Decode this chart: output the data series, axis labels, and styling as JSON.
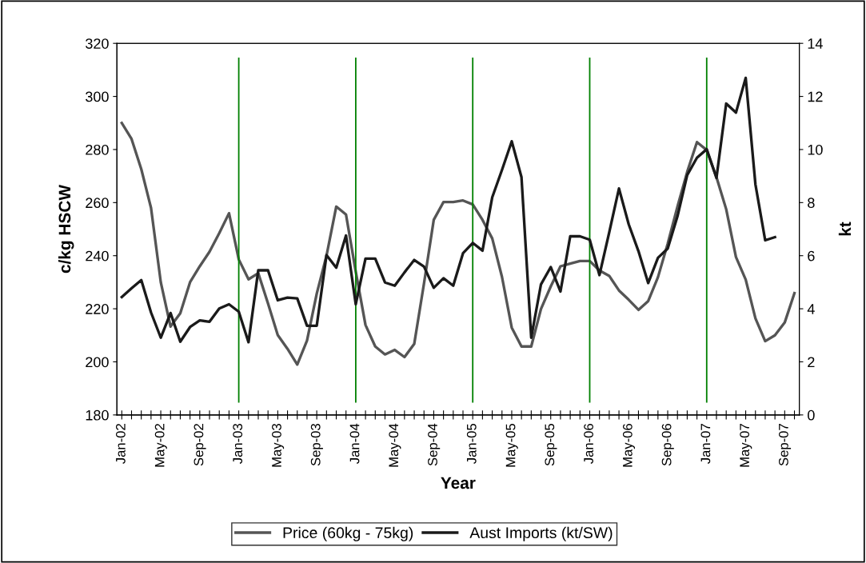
{
  "chart_data": {
    "type": "line",
    "xlabel": "Year",
    "ylabel": "c/kg HSCW",
    "y2label": "kt",
    "categories": [
      "Jan-02",
      null,
      null,
      null,
      "May-02",
      null,
      null,
      null,
      "Sep-02",
      null,
      null,
      null,
      "Jan-03",
      null,
      null,
      null,
      "May-03",
      null,
      null,
      null,
      "Sep-03",
      null,
      null,
      null,
      "Jan-04",
      null,
      null,
      null,
      "May-04",
      null,
      null,
      null,
      "Sep-04",
      null,
      null,
      null,
      "Jan-05",
      null,
      null,
      null,
      "May-05",
      null,
      null,
      null,
      "Sep-05",
      null,
      null,
      null,
      "Jan-06",
      null,
      null,
      null,
      "May-06",
      null,
      null,
      null,
      "Sep-06",
      null,
      null,
      null,
      "Jan-07",
      null,
      null,
      null,
      "May-07",
      null,
      null,
      null,
      "Sep-07",
      null
    ],
    "series": [
      {
        "name": "Price (60kg - 75kg)",
        "color": "#555555",
        "values": [
          290,
          284,
          272.6,
          258,
          230,
          213.3,
          218.3,
          230,
          236,
          241.5,
          248.5,
          256,
          238.6,
          231.1,
          233.4,
          222,
          210.1,
          204.9,
          199,
          208,
          225.7,
          240,
          258.5,
          255.5,
          234,
          213.9,
          205.8,
          202.8,
          204.5,
          201.8,
          206.8,
          229.5,
          253.5,
          260.2,
          260.2,
          260.8,
          259.3,
          253.5,
          246.5,
          232,
          212.9,
          205.8,
          205.8,
          219.9,
          228.4,
          236,
          237,
          238,
          238,
          234.4,
          232.4,
          226.9,
          223.4,
          219.6,
          222.9,
          231.9,
          244.5,
          258.5,
          271.6,
          282.8,
          279.8,
          269.6,
          257.5,
          239.5,
          231,
          216.4,
          207.8,
          210,
          214.8,
          225.9
        ]
      },
      {
        "name": "Aust Imports (kt/SW)",
        "color": "#1a1a1a",
        "axis": "y2",
        "values": [
          4.44,
          4.77,
          5.08,
          3.86,
          2.91,
          3.84,
          2.76,
          3.31,
          3.56,
          3.51,
          4.01,
          4.17,
          3.89,
          2.74,
          5.45,
          5.45,
          4.32,
          4.42,
          4.39,
          3.36,
          3.36,
          6.02,
          5.55,
          6.76,
          4.17,
          5.89,
          5.89,
          4.99,
          4.87,
          5.37,
          5.84,
          5.59,
          4.79,
          5.15,
          4.87,
          6.09,
          6.48,
          6.19,
          8.2,
          9.23,
          10.31,
          8.96,
          2.91,
          4.92,
          5.57,
          4.65,
          6.73,
          6.73,
          6.6,
          5.27,
          6.88,
          8.53,
          7.18,
          6.17,
          4.97,
          5.92,
          6.27,
          7.48,
          9.04,
          9.69,
          10.01,
          8.93,
          11.73,
          11.39,
          12.7,
          8.68,
          6.58,
          6.7,
          null,
          null
        ]
      }
    ],
    "ylim": [
      180,
      320
    ],
    "yticks": [
      180,
      200,
      220,
      240,
      260,
      280,
      300,
      320
    ],
    "y2lim": [
      0,
      14
    ],
    "y2ticks": [
      0,
      2,
      4,
      6,
      8,
      10,
      12,
      14
    ],
    "ref_lines": [
      {
        "axis": "x",
        "value": "Jan-03",
        "color": "#008000"
      },
      {
        "axis": "x",
        "value": "Jan-04",
        "color": "#008000"
      },
      {
        "axis": "x",
        "value": "Jan-05",
        "color": "#008000"
      },
      {
        "axis": "x",
        "value": "Jan-06",
        "color": "#008000"
      },
      {
        "axis": "x",
        "value": "Jan-07",
        "color": "#008000"
      }
    ],
    "grid": false,
    "legend": "bottom",
    "marker": "none",
    "line_style": "solid"
  }
}
